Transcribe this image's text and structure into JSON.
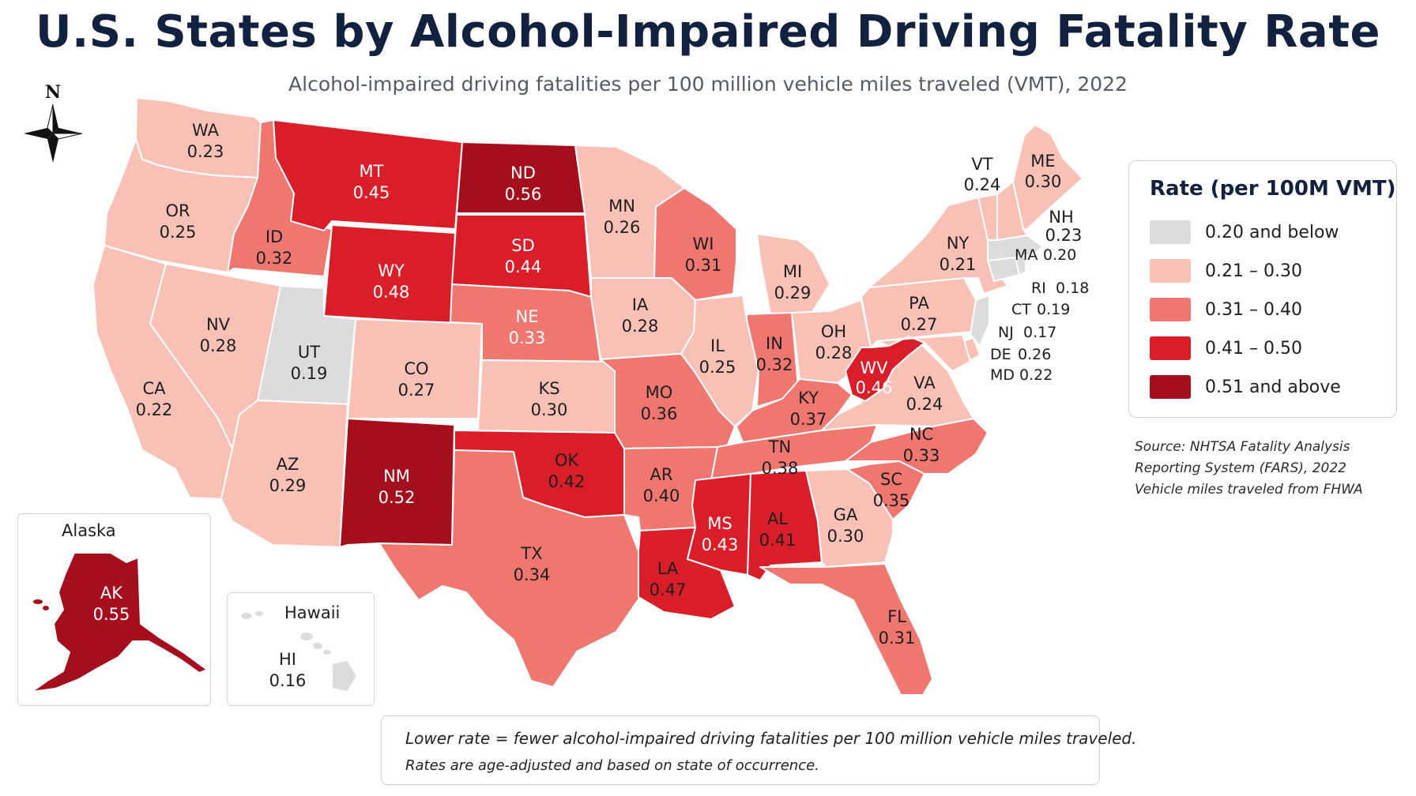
{
  "title": "U.S. States by Alcohol-Impaired Driving Fatality Rate",
  "subtitle": "Alcohol-impaired driving fatalities per 100 million vehicle miles traveled (VMT), 2022",
  "compass": {
    "label": "N"
  },
  "colors": {
    "bin1": "#dcdcdc",
    "bin2": "#f9c1b6",
    "bin3": "#ef7770",
    "bin4": "#d91e2a",
    "bin5": "#a50e1c",
    "background": "#ffffff",
    "title": "#12213f"
  },
  "legend": {
    "title": "Rate (per 100M VMT)",
    "items": [
      {
        "label": "0.20 and below",
        "color": "#dcdcdc"
      },
      {
        "label": "0.21 – 0.30",
        "color": "#f9c1b6"
      },
      {
        "label": "0.31 – 0.40",
        "color": "#ef7770"
      },
      {
        "label": "0.41 – 0.50",
        "color": "#d91e2a"
      },
      {
        "label": "0.51 and above",
        "color": "#a50e1c"
      }
    ]
  },
  "insets": {
    "alaska_title": "Alaska",
    "hawaii_title": "Hawaii"
  },
  "states": {
    "WA": {
      "abbr": "WA",
      "rate": "0.23"
    },
    "OR": {
      "abbr": "OR",
      "rate": "0.25"
    },
    "CA": {
      "abbr": "CA",
      "rate": "0.22"
    },
    "NV": {
      "abbr": "NV",
      "rate": "0.28"
    },
    "ID": {
      "abbr": "ID",
      "rate": "0.32"
    },
    "MT": {
      "abbr": "MT",
      "rate": "0.45"
    },
    "WY": {
      "abbr": "WY",
      "rate": "0.48"
    },
    "UT": {
      "abbr": "UT",
      "rate": "0.19"
    },
    "AZ": {
      "abbr": "AZ",
      "rate": "0.29"
    },
    "CO": {
      "abbr": "CO",
      "rate": "0.27"
    },
    "NM": {
      "abbr": "NM",
      "rate": "0.52"
    },
    "ND": {
      "abbr": "ND",
      "rate": "0.56"
    },
    "SD": {
      "abbr": "SD",
      "rate": "0.44"
    },
    "NE": {
      "abbr": "NE",
      "rate": "0.33"
    },
    "KS": {
      "abbr": "KS",
      "rate": "0.30"
    },
    "OK": {
      "abbr": "OK",
      "rate": "0.42"
    },
    "TX": {
      "abbr": "TX",
      "rate": "0.34"
    },
    "MN": {
      "abbr": "MN",
      "rate": "0.26"
    },
    "IA": {
      "abbr": "IA",
      "rate": "0.28"
    },
    "MO": {
      "abbr": "MO",
      "rate": "0.36"
    },
    "AR": {
      "abbr": "AR",
      "rate": "0.40"
    },
    "LA": {
      "abbr": "LA",
      "rate": "0.47"
    },
    "WI": {
      "abbr": "WI",
      "rate": "0.31"
    },
    "IL": {
      "abbr": "IL",
      "rate": "0.25"
    },
    "MI": {
      "abbr": "MI",
      "rate": "0.29"
    },
    "IN": {
      "abbr": "IN",
      "rate": "0.32"
    },
    "OH": {
      "abbr": "OH",
      "rate": "0.28"
    },
    "KY": {
      "abbr": "KY",
      "rate": "0.37"
    },
    "TN": {
      "abbr": "TN",
      "rate": "0.38"
    },
    "MS": {
      "abbr": "MS",
      "rate": "0.43"
    },
    "AL": {
      "abbr": "AL",
      "rate": "0.41"
    },
    "GA": {
      "abbr": "GA",
      "rate": "0.30"
    },
    "FL": {
      "abbr": "FL",
      "rate": "0.31"
    },
    "SC": {
      "abbr": "SC",
      "rate": "0.35"
    },
    "NC": {
      "abbr": "NC",
      "rate": "0.33"
    },
    "VA": {
      "abbr": "VA",
      "rate": "0.24"
    },
    "WV": {
      "abbr": "WV",
      "rate": "0.46"
    },
    "PA": {
      "abbr": "PA",
      "rate": "0.27"
    },
    "NY": {
      "abbr": "NY",
      "rate": "0.21"
    },
    "VT": {
      "abbr": "VT",
      "rate": "0.24"
    },
    "ME": {
      "abbr": "ME",
      "rate": "0.30"
    },
    "NH": {
      "abbr": "NH",
      "rate": "0.23"
    },
    "MA": {
      "abbr": "MA",
      "rate": "0.20"
    },
    "RI": {
      "abbr": "RI",
      "rate": "0.18"
    },
    "CT": {
      "abbr": "CT",
      "rate": "0.19"
    },
    "NJ": {
      "abbr": "NJ",
      "rate": "0.17"
    },
    "DE": {
      "abbr": "DE",
      "rate": "0.26"
    },
    "MD": {
      "abbr": "MD",
      "rate": "0.22"
    },
    "AK": {
      "abbr": "AK",
      "rate": "0.55"
    },
    "HI": {
      "abbr": "HI",
      "rate": "0.16"
    }
  },
  "source": {
    "line1": "Source: NHTSA Fatality Analysis",
    "line2": "Reporting System (FARS), 2022",
    "line3": "Vehicle miles traveled from FHWA"
  },
  "note": {
    "line1": "Lower rate = fewer alcohol-impaired driving fatalities per 100 million vehicle miles traveled.",
    "line2": "Rates are age-adjusted and based on state of occurrence."
  }
}
